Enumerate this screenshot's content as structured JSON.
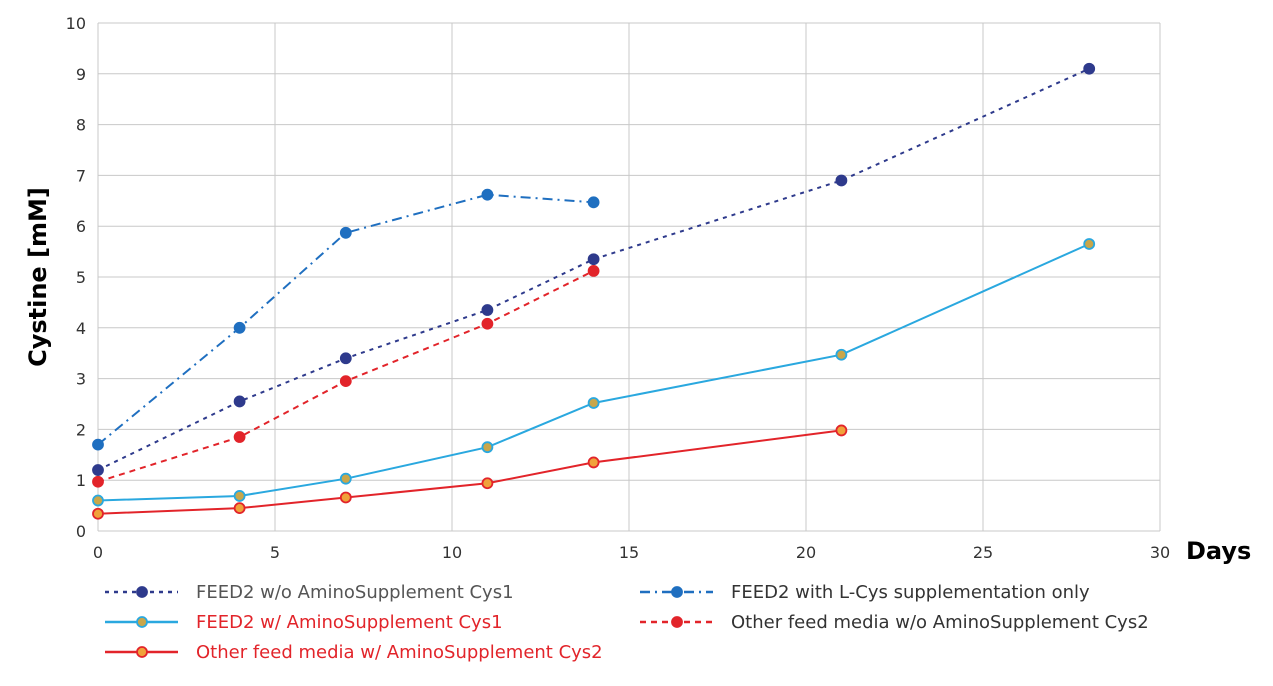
{
  "chart_data": {
    "type": "line",
    "title": "",
    "xlabel": "Days",
    "ylabel": "Cystine [mM]",
    "xlim": [
      0,
      30
    ],
    "ylim": [
      0,
      10
    ],
    "xticks": [
      0,
      5,
      10,
      15,
      20,
      25,
      30
    ],
    "yticks": [
      0,
      1,
      2,
      3,
      4,
      5,
      6,
      7,
      8,
      9,
      10
    ],
    "grid": true,
    "legend_position": "bottom",
    "series": [
      {
        "name": "FEED2 w/o AminoSupplement Cys1",
        "color": "#2e3a8c",
        "marker_fill": "#2e3a8c",
        "line_style": "dotted",
        "text_color": "#555555",
        "x": [
          0,
          4,
          7,
          11,
          14,
          21,
          28
        ],
        "y": [
          1.2,
          2.55,
          3.4,
          4.35,
          5.35,
          6.9,
          9.1
        ]
      },
      {
        "name": "FEED2 with L-Cys supplementation only",
        "color": "#1f6fc0",
        "marker_fill": "#1f6fc0",
        "line_style": "dashdot",
        "text_color": "#333333",
        "x": [
          0,
          4,
          7,
          11,
          14
        ],
        "y": [
          1.7,
          4.0,
          5.87,
          6.62,
          6.47
        ]
      },
      {
        "name": "FEED2 w/ AminoSupplement Cys1",
        "color": "#2aa8df",
        "marker_fill": "#c9a64a",
        "line_style": "solid",
        "text_color": "#e2242a",
        "x": [
          0,
          4,
          7,
          11,
          14,
          21,
          28
        ],
        "y": [
          0.6,
          0.69,
          1.03,
          1.65,
          2.52,
          3.47,
          5.65
        ]
      },
      {
        "name": "Other feed media w/o AminoSupplement Cys2",
        "color": "#e2242a",
        "marker_fill": "#e2242a",
        "line_style": "dashed",
        "text_color": "#333333",
        "x": [
          0,
          4,
          7,
          11,
          14
        ],
        "y": [
          0.97,
          1.85,
          2.95,
          4.08,
          5.12
        ]
      },
      {
        "name": "Other feed media w/ AminoSupplement Cys2",
        "color": "#e2242a",
        "marker_fill": "#f0a23a",
        "line_style": "solid",
        "text_color": "#e2242a",
        "x": [
          0,
          4,
          7,
          11,
          14,
          21
        ],
        "y": [
          0.34,
          0.45,
          0.66,
          0.94,
          1.35,
          1.98
        ]
      }
    ]
  }
}
